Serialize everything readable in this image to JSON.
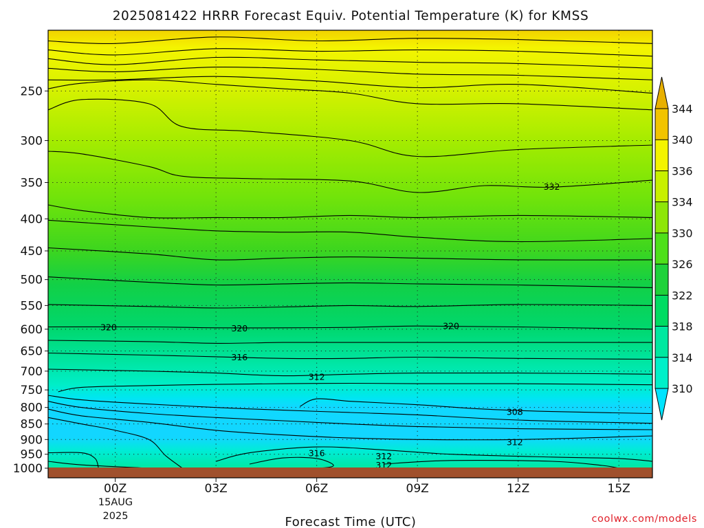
{
  "chart_data": {
    "type": "heatmap",
    "title": "2025081422 HRRR Forecast Equiv. Potential Temperature (K) for KMSS",
    "xlabel": "Forecast Time (UTC)",
    "ylabel": "",
    "y_scale": "log-pressure",
    "y_inverted": true,
    "ylim_hPa": [
      1000,
      200
    ],
    "x_ticks": [
      "00Z",
      "03Z",
      "06Z",
      "09Z",
      "12Z",
      "15Z"
    ],
    "x_date_label": [
      "15AUG",
      "2025"
    ],
    "x_range_hours": [
      -2,
      16
    ],
    "y_ticks": [
      250,
      300,
      350,
      400,
      450,
      500,
      550,
      600,
      650,
      700,
      750,
      800,
      850,
      900,
      950,
      1000
    ],
    "grid": "dotted",
    "colorbar": {
      "levels": [
        310,
        314,
        318,
        322,
        326,
        330,
        334,
        336,
        340,
        344
      ],
      "fill_colors": [
        "#00e4ff",
        "#00f0c9",
        "#00e8a0",
        "#00dc62",
        "#1ed23a",
        "#4ee01a",
        "#8ee608",
        "#c8f000",
        "#f4f400",
        "#f2c400",
        "#e8b000"
      ],
      "extend": "both"
    },
    "contour_labels": [
      {
        "value": "332",
        "hour": 13.0,
        "p": 355
      },
      {
        "value": "320",
        "hour": -0.2,
        "p": 595
      },
      {
        "value": "320",
        "hour": 3.7,
        "p": 597
      },
      {
        "value": "320",
        "hour": 10.0,
        "p": 592
      },
      {
        "value": "316",
        "hour": 3.7,
        "p": 664
      },
      {
        "value": "312",
        "hour": 6.0,
        "p": 714
      },
      {
        "value": "308",
        "hour": 11.9,
        "p": 812
      },
      {
        "value": "312",
        "hour": 11.9,
        "p": 907
      },
      {
        "value": "316",
        "hour": 6.0,
        "p": 945
      },
      {
        "value": "312",
        "hour": 8.0,
        "p": 955
      },
      {
        "value": "312",
        "hour": 8.0,
        "p": 988
      }
    ],
    "contours": [
      [
        [
          -2,
          208
        ],
        [
          0,
          210
        ],
        [
          3,
          205
        ],
        [
          6,
          208
        ],
        [
          9,
          206
        ],
        [
          12,
          207
        ],
        [
          16,
          210
        ]
      ],
      [
        [
          -2,
          215
        ],
        [
          0,
          219
        ],
        [
          3,
          214
        ],
        [
          6,
          216
        ],
        [
          9,
          215
        ],
        [
          12,
          216
        ],
        [
          16,
          220
        ]
      ],
      [
        [
          -2,
          222
        ],
        [
          0,
          227
        ],
        [
          3,
          221
        ],
        [
          6,
          223
        ],
        [
          9,
          225
        ],
        [
          12,
          226
        ],
        [
          16,
          230
        ]
      ],
      [
        [
          -2,
          230
        ],
        [
          0,
          233
        ],
        [
          3,
          229
        ],
        [
          6,
          231
        ],
        [
          9,
          235
        ],
        [
          12,
          236
        ],
        [
          16,
          240
        ]
      ],
      [
        [
          -2,
          240
        ],
        [
          0,
          240
        ],
        [
          3,
          237
        ],
        [
          6,
          241
        ],
        [
          9,
          247
        ],
        [
          12,
          244
        ],
        [
          16,
          252
        ]
      ],
      [
        [
          -2,
          248
        ],
        [
          -1,
          243
        ],
        [
          1,
          240
        ],
        [
          3,
          244
        ],
        [
          5,
          248
        ],
        [
          7,
          252
        ],
        [
          9,
          262
        ],
        [
          12,
          262
        ],
        [
          16,
          268
        ]
      ],
      [
        [
          -2,
          268
        ],
        [
          -1,
          258
        ],
        [
          1,
          262
        ],
        [
          2,
          285
        ],
        [
          4,
          290
        ],
        [
          7,
          300
        ],
        [
          9,
          318
        ],
        [
          12,
          310
        ],
        [
          16,
          305
        ]
      ],
      [
        [
          -2,
          312
        ],
        [
          -1,
          315
        ],
        [
          1,
          330
        ],
        [
          2,
          342
        ],
        [
          4,
          345
        ],
        [
          7,
          348
        ],
        [
          9,
          363
        ],
        [
          11,
          354
        ],
        [
          13,
          356
        ],
        [
          16,
          347
        ]
      ],
      [
        [
          -2,
          380
        ],
        [
          -1,
          388
        ],
        [
          1,
          398
        ],
        [
          3,
          398
        ],
        [
          5,
          398
        ],
        [
          7,
          395
        ],
        [
          9,
          398
        ],
        [
          12,
          395
        ],
        [
          16,
          398
        ]
      ],
      [
        [
          -2,
          402
        ],
        [
          1,
          412
        ],
        [
          3,
          418
        ],
        [
          5,
          420
        ],
        [
          7,
          420
        ],
        [
          9,
          428
        ],
        [
          12,
          435
        ],
        [
          16,
          430
        ]
      ],
      [
        [
          -2,
          445
        ],
        [
          1,
          455
        ],
        [
          3,
          465
        ],
        [
          5,
          462
        ],
        [
          7,
          460
        ],
        [
          9,
          462
        ],
        [
          12,
          465
        ],
        [
          16,
          465
        ]
      ],
      [
        [
          -2,
          495
        ],
        [
          1,
          505
        ],
        [
          3,
          510
        ],
        [
          5,
          508
        ],
        [
          7,
          506
        ],
        [
          9,
          508
        ],
        [
          12,
          510
        ],
        [
          16,
          515
        ]
      ],
      [
        [
          -2,
          548
        ],
        [
          1,
          552
        ],
        [
          3,
          555
        ],
        [
          5,
          553
        ],
        [
          7,
          550
        ],
        [
          9,
          552
        ],
        [
          12,
          548
        ],
        [
          16,
          550
        ]
      ],
      [
        [
          -2,
          595
        ],
        [
          1,
          595
        ],
        [
          3,
          597
        ],
        [
          5,
          597
        ],
        [
          7,
          596
        ],
        [
          9,
          593
        ],
        [
          12,
          595
        ],
        [
          16,
          600
        ]
      ],
      [
        [
          -2,
          625
        ],
        [
          1,
          628
        ],
        [
          3,
          632
        ],
        [
          5,
          630
        ],
        [
          7,
          630
        ],
        [
          9,
          630
        ],
        [
          12,
          630
        ],
        [
          16,
          630
        ]
      ],
      [
        [
          -2,
          655
        ],
        [
          1,
          660
        ],
        [
          3,
          664
        ],
        [
          5,
          668
        ],
        [
          7,
          668
        ],
        [
          9,
          665
        ],
        [
          12,
          668
        ],
        [
          16,
          670
        ]
      ],
      [
        [
          -2,
          695
        ],
        [
          1,
          700
        ],
        [
          3,
          705
        ],
        [
          5,
          712
        ],
        [
          7,
          708
        ],
        [
          9,
          705
        ],
        [
          12,
          705
        ],
        [
          16,
          708
        ]
      ],
      [
        [
          -1.7,
          755
        ],
        [
          -1,
          743
        ],
        [
          1,
          738
        ],
        [
          3,
          735
        ],
        [
          5,
          733
        ],
        [
          7,
          732
        ],
        [
          9,
          733
        ],
        [
          12,
          733
        ],
        [
          16,
          736
        ]
      ],
      [
        [
          5.5,
          797
        ],
        [
          6,
          775
        ],
        [
          7,
          782
        ],
        [
          9,
          792
        ],
        [
          11,
          805
        ],
        [
          13,
          812
        ],
        [
          16,
          818
        ]
      ],
      [
        [
          -2,
          765
        ],
        [
          -1,
          778
        ],
        [
          1,
          790
        ],
        [
          3,
          800
        ],
        [
          5,
          808
        ],
        [
          7,
          815
        ],
        [
          9,
          822
        ],
        [
          12,
          838
        ],
        [
          16,
          848
        ]
      ],
      [
        [
          -2,
          782
        ],
        [
          -1,
          800
        ],
        [
          1,
          818
        ],
        [
          3,
          830
        ],
        [
          5,
          840
        ],
        [
          7,
          850
        ],
        [
          9,
          858
        ],
        [
          12,
          865
        ],
        [
          16,
          868
        ]
      ],
      [
        [
          -2,
          805
        ],
        [
          -1,
          825
        ],
        [
          1,
          845
        ],
        [
          3,
          870
        ],
        [
          5,
          885
        ],
        [
          7,
          895
        ],
        [
          9,
          900
        ],
        [
          12,
          900
        ],
        [
          16,
          888
        ]
      ],
      [
        [
          -2,
          830
        ],
        [
          -1,
          850
        ],
        [
          0,
          870
        ],
        [
          1,
          900
        ],
        [
          1.5,
          955
        ],
        [
          2,
          1000
        ]
      ],
      [
        [
          -2,
          945
        ],
        [
          -1,
          945
        ],
        [
          -0.6,
          965
        ],
        [
          -0.5,
          1000
        ]
      ],
      [
        [
          4,
          985
        ],
        [
          5,
          963
        ],
        [
          6,
          965
        ],
        [
          6.5,
          990
        ],
        [
          6,
          1000
        ],
        [
          4.5,
          1000
        ]
      ],
      [
        [
          3,
          975
        ],
        [
          4,
          945
        ],
        [
          6,
          925
        ],
        [
          8,
          935
        ],
        [
          10,
          950
        ],
        [
          13,
          960
        ],
        [
          15,
          965
        ],
        [
          16,
          975
        ]
      ],
      [
        [
          8,
          985
        ],
        [
          10,
          972
        ],
        [
          13,
          975
        ],
        [
          14.5,
          990
        ],
        [
          15,
          1000
        ]
      ],
      [
        [
          -2,
          975
        ],
        [
          -1,
          988
        ],
        [
          1,
          1000
        ]
      ]
    ]
  },
  "credit": "coolwx.com/models"
}
